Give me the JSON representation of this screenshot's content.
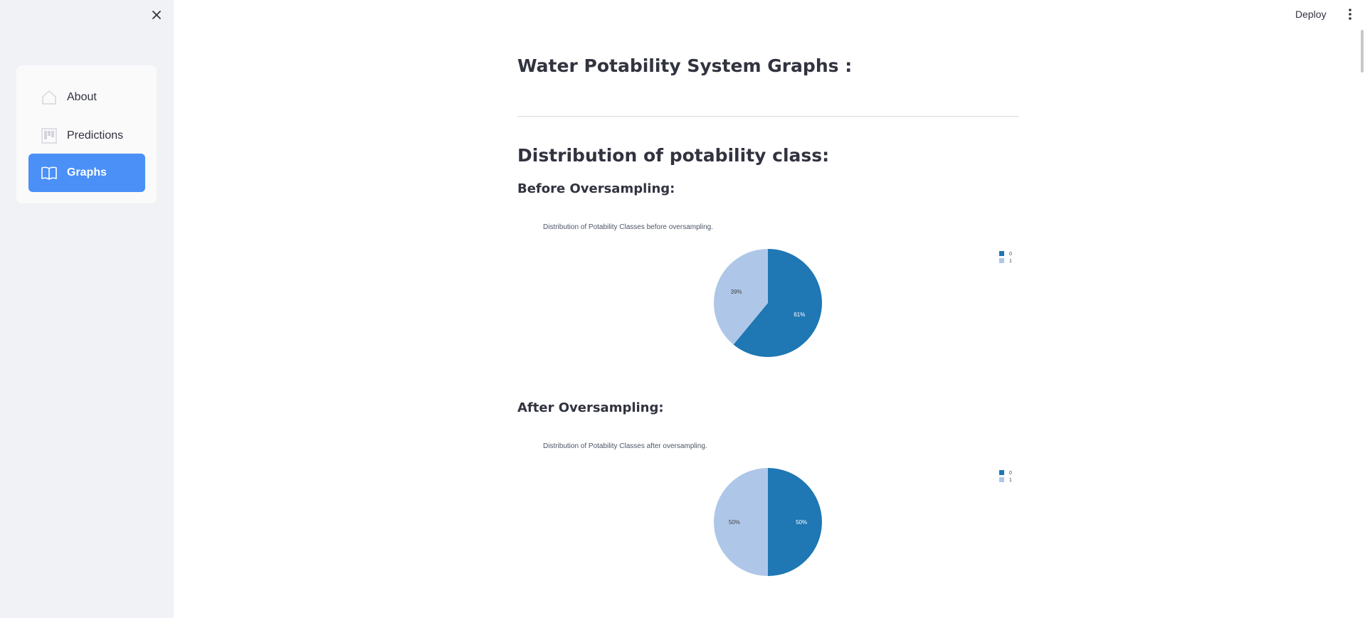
{
  "sidebar": {
    "close_icon": "close-icon",
    "items": [
      {
        "label": "About",
        "icon": "home-icon",
        "active": false
      },
      {
        "label": "Predictions",
        "icon": "kanban-icon",
        "active": false
      },
      {
        "label": "Graphs",
        "icon": "book-icon",
        "active": true
      }
    ]
  },
  "topbar": {
    "deploy_label": "Deploy",
    "menu_icon": "vertical-dots-icon"
  },
  "main": {
    "title": "Water Potability System Graphs :",
    "section_heading": "Distribution of potability class:",
    "before_heading": "Before Oversampling:",
    "after_heading": "After Oversampling:"
  },
  "colors": {
    "accent": "#4a90f7",
    "class_0": "#1f77b4",
    "class_1": "#aec7e8",
    "sidebar_bg": "#f0f2f6"
  },
  "chart_data": [
    {
      "type": "pie",
      "title": "Distribution of Potability Classes before oversampling.",
      "categories": [
        "0",
        "1"
      ],
      "values": [
        61,
        39
      ],
      "labels": [
        "61%",
        "39%"
      ],
      "legend": "top-right"
    },
    {
      "type": "pie",
      "title": "Distribution of Potability Classes after oversampling.",
      "categories": [
        "0",
        "1"
      ],
      "values": [
        50,
        50
      ],
      "labels": [
        "50%",
        "50%"
      ],
      "legend": "top-right"
    }
  ]
}
